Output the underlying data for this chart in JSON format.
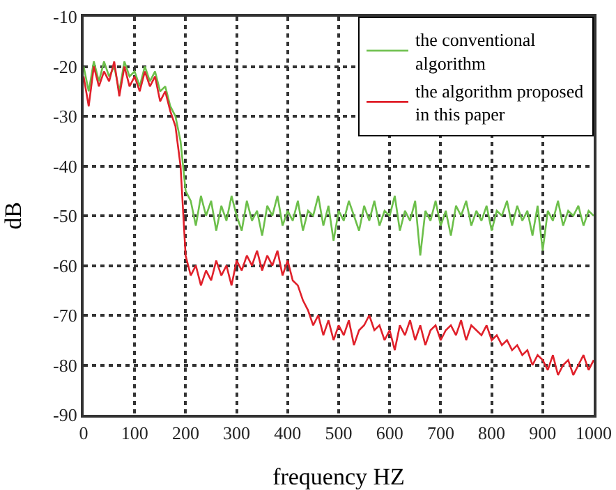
{
  "chart_data": {
    "type": "line",
    "xlabel": "frequency HZ",
    "ylabel": "dB",
    "xlim": [
      0,
      1000
    ],
    "ylim": [
      -90,
      -10
    ],
    "xticks": [
      0,
      100,
      200,
      300,
      400,
      500,
      600,
      700,
      800,
      900,
      1000
    ],
    "yticks": [
      -90,
      -80,
      -70,
      -60,
      -50,
      -40,
      -30,
      -20,
      -10
    ],
    "grid": true,
    "legend": "top right",
    "marker": "none",
    "line_style": "solid",
    "x": [
      0,
      10,
      20,
      30,
      40,
      50,
      60,
      70,
      80,
      90,
      100,
      110,
      120,
      130,
      140,
      150,
      160,
      170,
      180,
      190,
      200,
      210,
      220,
      230,
      240,
      250,
      260,
      270,
      280,
      290,
      300,
      310,
      320,
      330,
      340,
      350,
      360,
      370,
      380,
      390,
      400,
      410,
      420,
      430,
      440,
      450,
      460,
      470,
      480,
      490,
      500,
      510,
      520,
      530,
      540,
      550,
      560,
      570,
      580,
      590,
      600,
      610,
      620,
      630,
      640,
      650,
      660,
      670,
      680,
      690,
      700,
      710,
      720,
      730,
      740,
      750,
      760,
      770,
      780,
      790,
      800,
      810,
      820,
      830,
      840,
      850,
      860,
      870,
      880,
      890,
      900,
      910,
      920,
      930,
      940,
      950,
      960,
      970,
      980,
      990,
      1000
    ],
    "series": [
      {
        "name": "the conventional algorithm",
        "color": "#6cbf4a",
        "values": [
          -20,
          -25,
          -19,
          -23,
          -19,
          -22,
          -20,
          -25,
          -19,
          -22,
          -21,
          -24,
          -20,
          -23,
          -21,
          -25,
          -24,
          -28,
          -30,
          -35,
          -45,
          -47,
          -52,
          -46,
          -50,
          -47,
          -53,
          -48,
          -51,
          -46,
          -50,
          -53,
          -47,
          -51,
          -49,
          -54,
          -48,
          -50,
          -46,
          -52,
          -49,
          -51,
          -47,
          -53,
          -49,
          -50,
          -46,
          -52,
          -48,
          -55,
          -49,
          -51,
          -47,
          -50,
          -53,
          -48,
          -51,
          -47,
          -52,
          -49,
          -50,
          -46,
          -53,
          -49,
          -51,
          -47,
          -58,
          -49,
          -51,
          -47,
          -52,
          -49,
          -54,
          -48,
          -50,
          -47,
          -52,
          -49,
          -51,
          -48,
          -53,
          -49,
          -50,
          -47,
          -52,
          -48,
          -51,
          -49,
          -54,
          -48,
          -57,
          -49,
          -51,
          -47,
          -52,
          -49,
          -50,
          -48,
          -52,
          -49,
          -50
        ]
      },
      {
        "name": "the algorithm proposed in this paper",
        "color": "#e0202a",
        "values": [
          -22,
          -28,
          -20,
          -24,
          -21,
          -23,
          -19,
          -26,
          -20,
          -24,
          -22,
          -25,
          -21,
          -24,
          -22,
          -27,
          -25,
          -29,
          -32,
          -40,
          -58,
          -62,
          -60,
          -64,
          -61,
          -63,
          -59,
          -62,
          -60,
          -64,
          -59,
          -61,
          -58,
          -60,
          -57,
          -61,
          -58,
          -60,
          -57,
          -62,
          -59,
          -63,
          -64,
          -67,
          -69,
          -72,
          -70,
          -74,
          -71,
          -75,
          -72,
          -74,
          -71,
          -76,
          -73,
          -72,
          -70,
          -73,
          -72,
          -75,
          -73,
          -77,
          -72,
          -74,
          -71,
          -75,
          -72,
          -76,
          -73,
          -72,
          -75,
          -73,
          -72,
          -74,
          -71,
          -75,
          -72,
          -73,
          -74,
          -72,
          -75,
          -74,
          -76,
          -75,
          -77,
          -76,
          -78,
          -77,
          -80,
          -78,
          -79,
          -81,
          -78,
          -82,
          -80,
          -79,
          -82,
          -80,
          -78,
          -81,
          -79
        ]
      }
    ]
  }
}
